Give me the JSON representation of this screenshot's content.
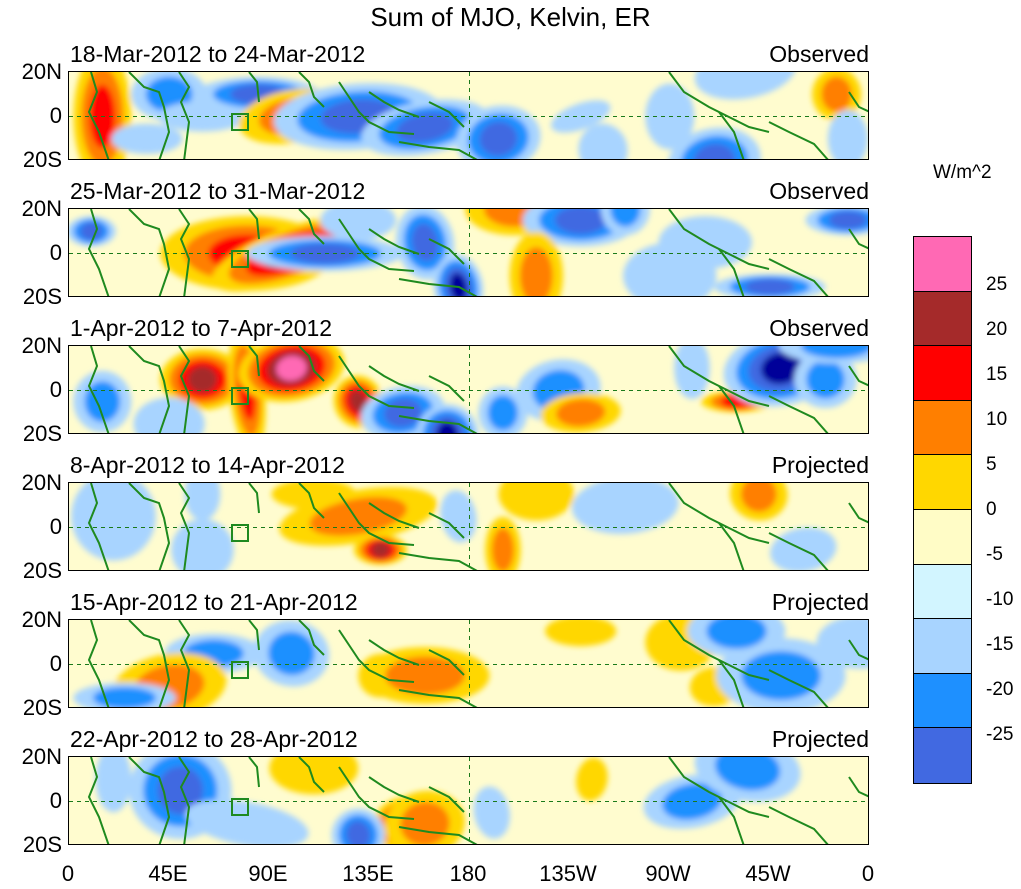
{
  "title": "Sum of MJO, Kelvin, ER",
  "units": "W/m^2",
  "chart_data": {
    "type": "heatmap",
    "title": "Sum of MJO, Kelvin, ER",
    "x_ticks": [
      "0",
      "45E",
      "90E",
      "135E",
      "180",
      "135W",
      "90W",
      "45W",
      "0"
    ],
    "y_ticks": [
      "20N",
      "0",
      "20S"
    ],
    "colorbar": {
      "units": "W/m^2",
      "labels": [
        "25",
        "20",
        "15",
        "10",
        "5",
        "0",
        "-5",
        "-10",
        "-15",
        "-20",
        "-25"
      ],
      "colors": [
        "#ff69b4",
        "#a52a2a",
        "#ff0000",
        "#ff7f00",
        "#ffd700",
        "#fffcc6",
        "#d2f5ff",
        "#a8d4ff",
        "#1e90ff",
        "#4169e1",
        "#000099",
        "#8a2be2"
      ]
    },
    "panels": [
      {
        "dates": "18-Mar-2012 to 24-Mar-2012",
        "status": "Observed",
        "blobs": [
          [
            15,
            0,
            -7,
            28,
            0,
            17
          ],
          [
            45,
            10,
            11,
            10,
            0,
            -14
          ],
          [
            60,
            0,
            14,
            5,
            0,
            -7
          ],
          [
            85,
            10,
            22,
            6,
            0,
            -16
          ],
          [
            100,
            0,
            18,
            10,
            -5,
            13
          ],
          [
            130,
            0,
            32,
            13,
            -2,
            -16
          ],
          [
            160,
            -5,
            -23,
            10,
            -5,
            -18
          ],
          [
            193,
            -10,
            -13,
            13,
            -5,
            -18
          ],
          [
            230,
            0,
            8,
            4,
            -10,
            -7
          ],
          [
            240,
            -15,
            -5,
            10,
            -5,
            -7
          ],
          [
            270,
            0,
            -5,
            13,
            0,
            -4
          ],
          [
            290,
            -20,
            -15,
            13,
            -5,
            -17
          ],
          [
            304,
            20,
            17,
            10,
            -5,
            -5
          ],
          [
            345,
            10,
            -5,
            10,
            0,
            10
          ],
          [
            350,
            -10,
            3,
            11,
            0,
            -8
          ],
          [
            35,
            -10,
            10,
            5,
            0,
            -7
          ]
        ]
      },
      {
        "dates": "25-Mar-2012 to 31-Mar-2012",
        "status": "Observed",
        "blobs": [
          [
            80,
            0,
            33,
            15,
            0,
            18
          ],
          [
            100,
            0,
            32,
            10,
            -10,
            21
          ],
          [
            130,
            15,
            11,
            7,
            0,
            -7
          ],
          [
            115,
            0,
            29,
            6,
            0,
            -15
          ],
          [
            160,
            5,
            7,
            15,
            -5,
            -17
          ],
          [
            175,
            -15,
            -5,
            13,
            -5,
            -20
          ],
          [
            200,
            20,
            16,
            10,
            0,
            14
          ],
          [
            230,
            15,
            20,
            10,
            0,
            -17
          ],
          [
            210,
            -10,
            6,
            18,
            0,
            12
          ],
          [
            250,
            20,
            5,
            10,
            0,
            -13
          ],
          [
            270,
            -10,
            -15,
            13,
            0,
            -9
          ],
          [
            286,
            5,
            15,
            10,
            0,
            -8
          ],
          [
            315,
            -15,
            19,
            4,
            0,
            -16
          ],
          [
            350,
            15,
            13,
            5,
            0,
            -15
          ],
          [
            10,
            10,
            5,
            5,
            0,
            -16
          ]
        ]
      },
      {
        "dates": "1-Apr-2012 to 7-Apr-2012",
        "status": "Observed",
        "blobs": [
          [
            60,
            5,
            13,
            12,
            0,
            20
          ],
          [
            80,
            0,
            2,
            26,
            -3,
            17
          ],
          [
            100,
            10,
            -18,
            13,
            -5,
            28
          ],
          [
            130,
            -5,
            -5,
            10,
            -10,
            21
          ],
          [
            150,
            -10,
            -13,
            10,
            -5,
            -17
          ],
          [
            170,
            -20,
            -8,
            12,
            -3,
            -20
          ],
          [
            195,
            -10,
            -5,
            10,
            0,
            -14
          ],
          [
            220,
            0,
            13,
            12,
            -5,
            -10
          ],
          [
            230,
            -10,
            -12,
            7,
            -2,
            10
          ],
          [
            280,
            10,
            2,
            12,
            0,
            -7
          ],
          [
            300,
            -5,
            10,
            3,
            0,
            17
          ],
          [
            320,
            10,
            20,
            15,
            -5,
            -23
          ],
          [
            340,
            5,
            8,
            11,
            0,
            -10
          ],
          [
            345,
            20,
            20,
            6,
            0,
            -14
          ],
          [
            45,
            -15,
            -10,
            10,
            0,
            -5
          ],
          [
            15,
            -5,
            7,
            12,
            0,
            -11
          ]
        ]
      },
      {
        "dates": "8-Apr-2012 to 14-Apr-2012",
        "status": "Projected",
        "blobs": [
          [
            110,
            15,
            13,
            5,
            0,
            7
          ],
          [
            130,
            5,
            30,
            10,
            -5,
            14
          ],
          [
            140,
            -10,
            -6,
            5,
            0,
            23
          ],
          [
            175,
            5,
            -2,
            10,
            -5,
            -6
          ],
          [
            195,
            -10,
            -2,
            13,
            0,
            13
          ],
          [
            210,
            15,
            11,
            10,
            0,
            6
          ],
          [
            250,
            10,
            -18,
            11,
            -2,
            -7
          ],
          [
            310,
            15,
            7,
            10,
            5,
            11
          ],
          [
            20,
            5,
            -13,
            18,
            0,
            -8
          ],
          [
            60,
            15,
            -2,
            10,
            0,
            -6
          ],
          [
            330,
            -10,
            9,
            8,
            -5,
            -5
          ],
          [
            60,
            -10,
            -8,
            12,
            0,
            -6
          ]
        ]
      },
      {
        "dates": "15-Apr-2012 to 21-Apr-2012",
        "status": "Projected",
        "blobs": [
          [
            65,
            5,
            -16,
            7,
            0,
            -12
          ],
          [
            100,
            5,
            -11,
            13,
            5,
            -10
          ],
          [
            140,
            -5,
            -4,
            8,
            -10,
            12
          ],
          [
            160,
            -5,
            23,
            11,
            0,
            11
          ],
          [
            45,
            -10,
            -20,
            13,
            -5,
            11
          ],
          [
            25,
            -15,
            17,
            5,
            0,
            -10
          ],
          [
            230,
            15,
            10,
            5,
            0,
            8
          ],
          [
            275,
            10,
            10,
            11,
            0,
            5
          ],
          [
            290,
            -10,
            -5,
            7,
            -2,
            9
          ],
          [
            320,
            -5,
            -23,
            15,
            0,
            -10
          ],
          [
            300,
            15,
            -16,
            10,
            0,
            -13
          ],
          [
            355,
            10,
            13,
            10,
            0,
            -8
          ]
        ]
      },
      {
        "dates": "22-Apr-2012 to 28-Apr-2012",
        "status": "Projected",
        "blobs": [
          [
            50,
            5,
            -17,
            20,
            0,
            -17
          ],
          [
            80,
            -10,
            -22,
            8,
            5,
            -5
          ],
          [
            110,
            15,
            14,
            10,
            0,
            8
          ],
          [
            150,
            -10,
            -8,
            10,
            -10,
            20
          ],
          [
            160,
            -10,
            -12,
            13,
            -5,
            14
          ],
          [
            130,
            -15,
            6,
            10,
            -5,
            -15
          ],
          [
            190,
            -5,
            2,
            10,
            -5,
            -7
          ],
          [
            235,
            10,
            1,
            8,
            5,
            5
          ],
          [
            280,
            0,
            16,
            10,
            -5,
            -10
          ],
          [
            305,
            15,
            -18,
            13,
            5,
            -10
          ],
          [
            20,
            10,
            -2,
            13,
            0,
            -5
          ]
        ]
      }
    ]
  }
}
